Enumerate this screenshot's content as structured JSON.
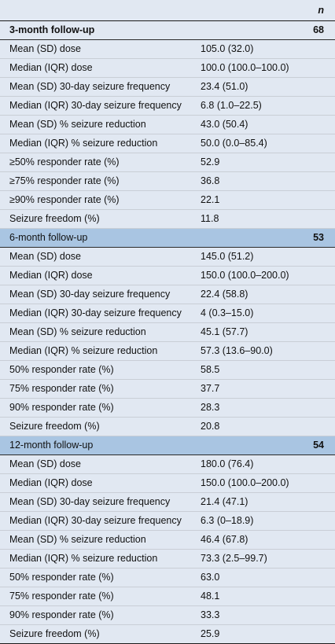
{
  "header": {
    "n_label": "n"
  },
  "sections": [
    {
      "title": "3-month follow-up",
      "n": "68",
      "rows": [
        {
          "label": "Mean (SD) dose",
          "value": "105.0 (32.0)"
        },
        {
          "label": "Median (IQR) dose",
          "value": "100.0 (100.0–100.0)"
        },
        {
          "label": "Mean (SD) 30-day seizure frequency",
          "value": "23.4 (51.0)"
        },
        {
          "label": "Median (IQR) 30-day seizure frequency",
          "value": "6.8 (1.0–22.5)"
        },
        {
          "label": "Mean (SD) % seizure reduction",
          "value": "43.0 (50.4)"
        },
        {
          "label": "Median (IQR) % seizure reduction",
          "value": "50.0 (0.0–85.4)"
        },
        {
          "label": "≥50% responder rate (%)",
          "value": "52.9"
        },
        {
          "label": "≥75% responder rate (%)",
          "value": "36.8"
        },
        {
          "label": "≥90% responder rate (%)",
          "value": "22.1"
        },
        {
          "label": "Seizure freedom (%)",
          "value": "11.8"
        }
      ]
    },
    {
      "title": "6-month follow-up",
      "n": "53",
      "rows": [
        {
          "label": "Mean (SD) dose",
          "value": "145.0 (51.2)"
        },
        {
          "label": "Median (IQR) dose",
          "value": "150.0 (100.0–200.0)"
        },
        {
          "label": "Mean (SD) 30-day seizure frequency",
          "value": "22.4 (58.8)"
        },
        {
          "label": "Median (IQR) 30-day seizure frequency",
          "value": "4 (0.3–15.0)"
        },
        {
          "label": "Mean (SD) % seizure reduction",
          "value": "45.1 (57.7)"
        },
        {
          "label": "Median (IQR) % seizure reduction",
          "value": "57.3 (13.6–90.0)"
        },
        {
          "label": "50% responder rate (%)",
          "value": "58.5"
        },
        {
          "label": "75% responder rate (%)",
          "value": "37.7"
        },
        {
          "label": "90% responder rate (%)",
          "value": "28.3"
        },
        {
          "label": "Seizure freedom (%)",
          "value": "20.8"
        }
      ]
    },
    {
      "title": "12-month follow-up",
      "n": "54",
      "rows": [
        {
          "label": "Mean (SD) dose",
          "value": "180.0 (76.4)"
        },
        {
          "label": "Median (IQR) dose",
          "value": "150.0 (100.0–200.0)"
        },
        {
          "label": "Mean (SD) 30-day seizure frequency",
          "value": "21.4 (47.1)"
        },
        {
          "label": "Median (IQR) 30-day seizure frequency",
          "value": "6.3 (0–18.9)"
        },
        {
          "label": "Mean (SD) % seizure reduction",
          "value": "46.4 (67.8)"
        },
        {
          "label": "Median (IQR) % seizure reduction",
          "value": "73.3 (2.5–99.7)"
        },
        {
          "label": "50% responder rate (%)",
          "value": "63.0"
        },
        {
          "label": "75% responder rate (%)",
          "value": "48.1"
        },
        {
          "label": "90% responder rate (%)",
          "value": "33.3"
        },
        {
          "label": "Seizure freedom (%)",
          "value": "25.9"
        }
      ]
    }
  ]
}
